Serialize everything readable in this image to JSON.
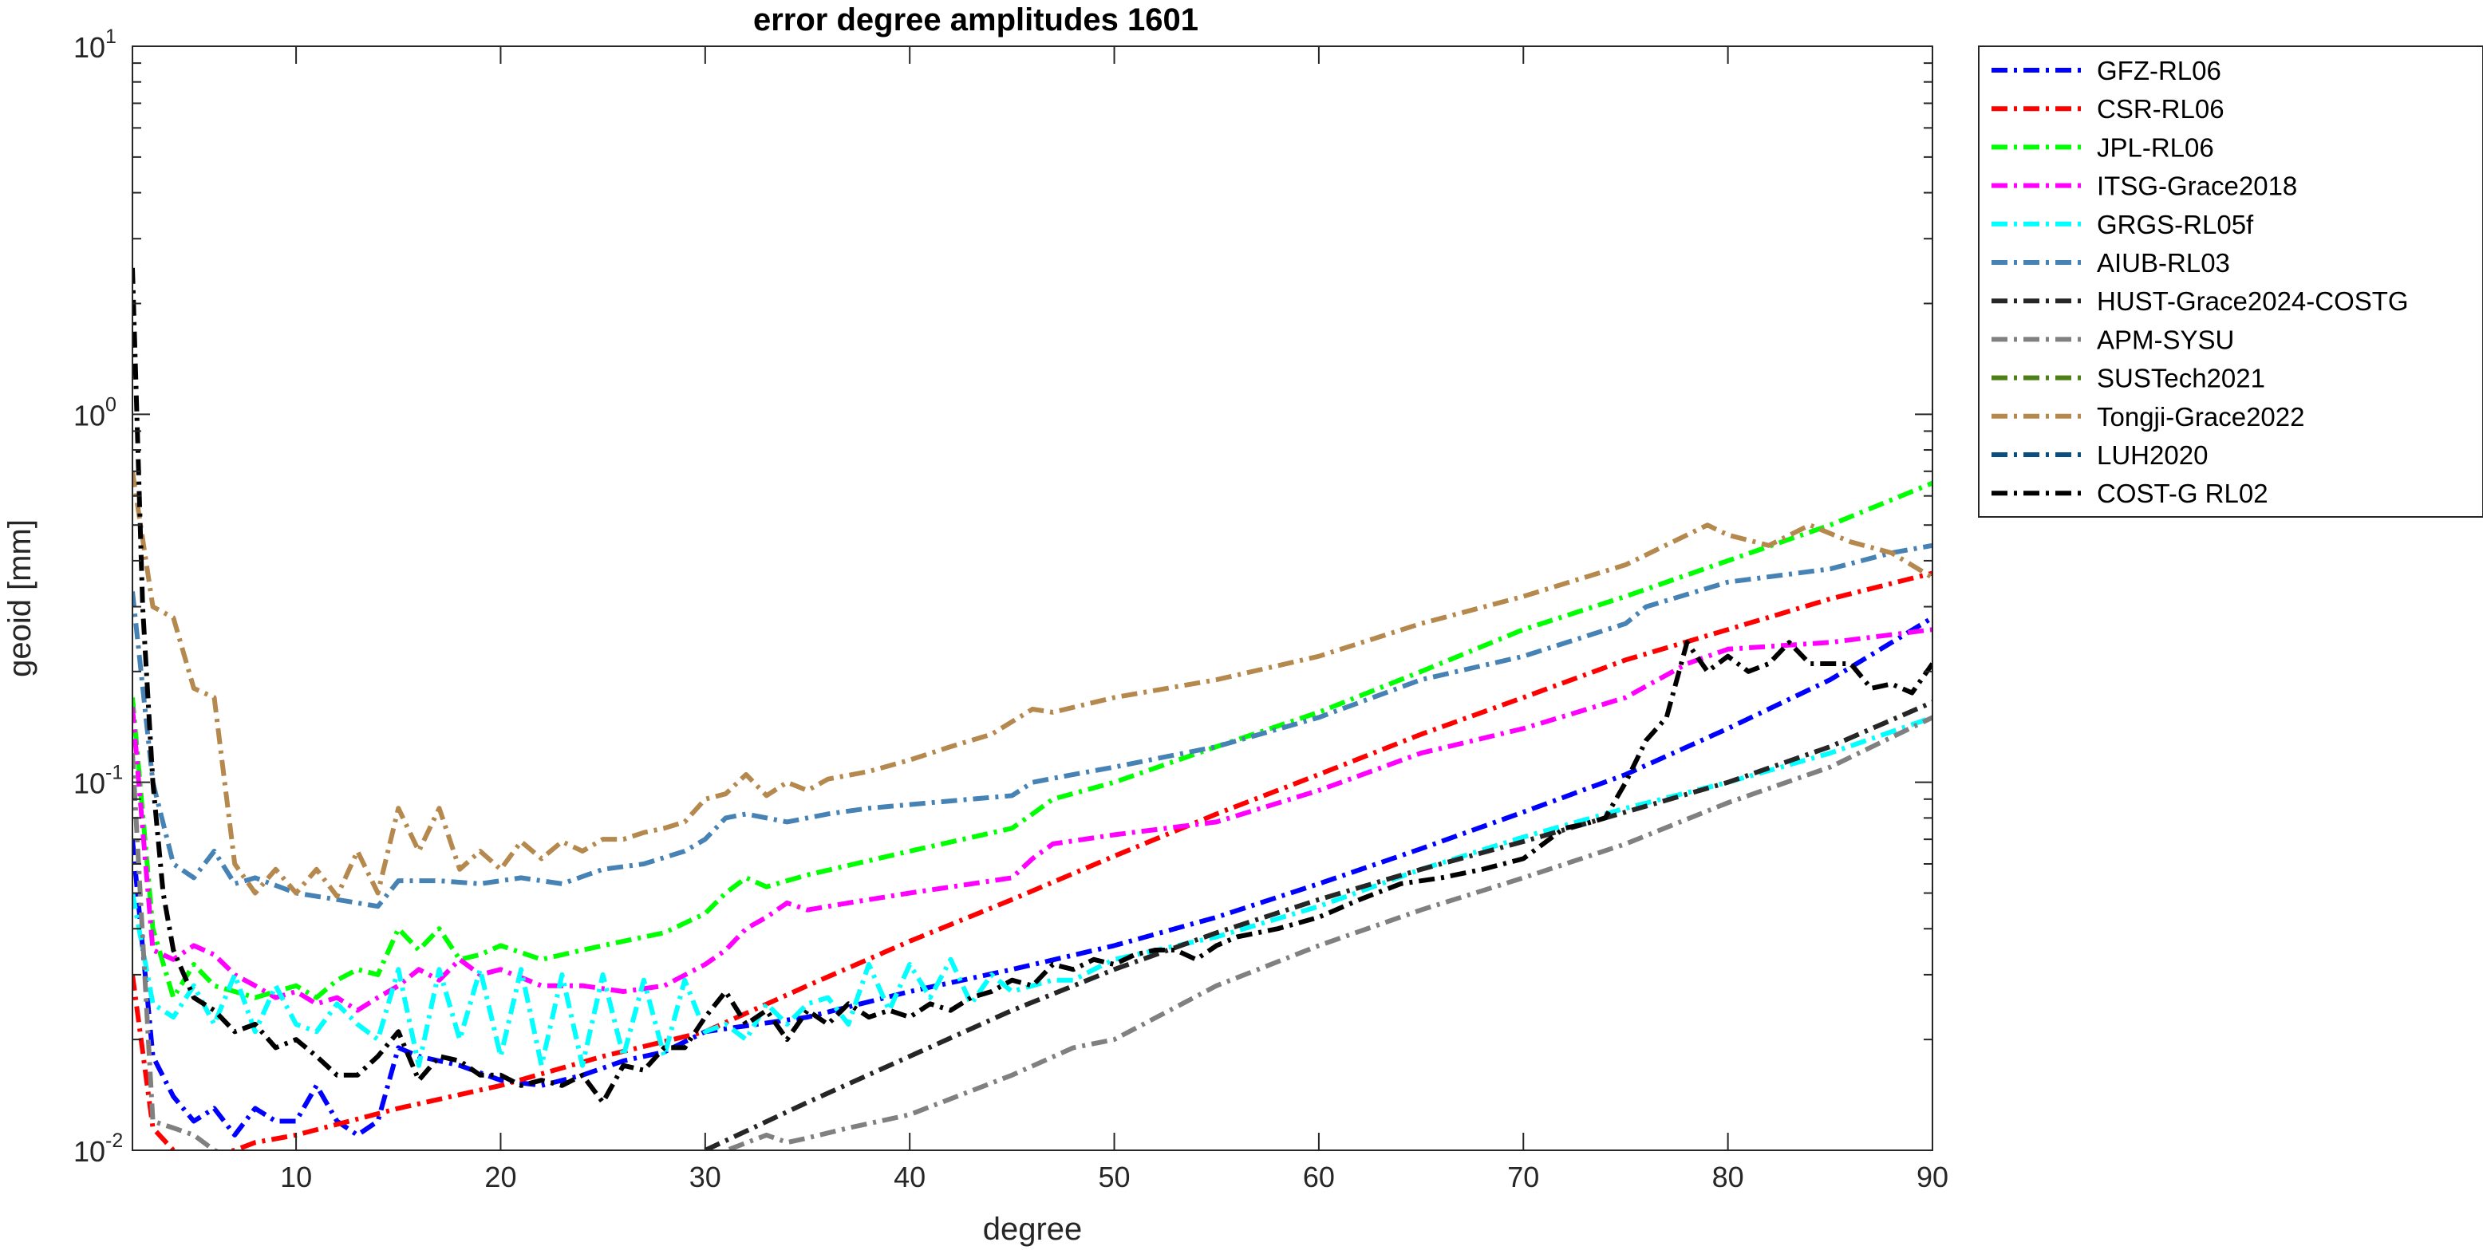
{
  "chart_data": {
    "type": "line",
    "title": "error degree amplitudes 1601",
    "xlabel": "degree",
    "ylabel": "geoid [mm]",
    "xlim": [
      2,
      90
    ],
    "ylim": [
      0.01,
      10
    ],
    "y_scale": "log",
    "grid": false,
    "legend_position": "outside-right",
    "x_ticks": [
      10,
      20,
      30,
      40,
      50,
      60,
      70,
      80,
      90
    ],
    "y_ticks": [
      {
        "value": 0.01,
        "base": "10",
        "exp": "-2"
      },
      {
        "value": 0.1,
        "base": "10",
        "exp": "-1"
      },
      {
        "value": 1,
        "base": "10",
        "exp": "0"
      },
      {
        "value": 10,
        "base": "10",
        "exp": "1"
      }
    ],
    "series": [
      {
        "name": "GFZ-RL06",
        "color": "#0000ff",
        "x": [
          2,
          3,
          4,
          5,
          6,
          7,
          8,
          9,
          10,
          11,
          12,
          13,
          14,
          15,
          16,
          18,
          20,
          22,
          24,
          26,
          28,
          30,
          35,
          40,
          45,
          50,
          55,
          60,
          65,
          70,
          75,
          80,
          85,
          90
        ],
        "y": [
          0.07,
          0.018,
          0.014,
          0.012,
          0.013,
          0.011,
          0.013,
          0.012,
          0.012,
          0.015,
          0.012,
          0.011,
          0.012,
          0.019,
          0.018,
          0.017,
          0.0155,
          0.015,
          0.016,
          0.0175,
          0.0185,
          0.021,
          0.023,
          0.027,
          0.031,
          0.036,
          0.043,
          0.053,
          0.066,
          0.083,
          0.105,
          0.14,
          0.19,
          0.28
        ]
      },
      {
        "name": "CSR-RL06",
        "color": "#ff0000",
        "x": [
          2,
          3,
          4,
          5,
          6,
          7,
          8,
          10,
          15,
          20,
          25,
          30,
          35,
          40,
          45,
          50,
          55,
          60,
          65,
          70,
          75,
          80,
          85,
          90
        ],
        "y": [
          0.03,
          0.0115,
          0.01,
          0.0095,
          0.0098,
          0.01,
          0.0105,
          0.011,
          0.013,
          0.015,
          0.018,
          0.021,
          0.028,
          0.037,
          0.048,
          0.063,
          0.082,
          0.105,
          0.135,
          0.17,
          0.215,
          0.26,
          0.315,
          0.37
        ]
      },
      {
        "name": "JPL-RL06",
        "color": "#00ff00",
        "x": [
          2,
          3,
          4,
          5,
          6,
          7,
          8,
          9,
          10,
          11,
          12,
          13,
          14,
          15,
          16,
          17,
          18,
          19,
          20,
          22,
          24,
          26,
          28,
          30,
          31,
          32,
          33,
          34,
          35,
          40,
          45,
          46,
          47,
          50,
          55,
          60,
          65,
          70,
          75,
          80,
          85,
          90
        ],
        "y": [
          0.17,
          0.04,
          0.026,
          0.032,
          0.028,
          0.027,
          0.026,
          0.027,
          0.028,
          0.026,
          0.029,
          0.031,
          0.03,
          0.04,
          0.035,
          0.04,
          0.033,
          0.034,
          0.036,
          0.033,
          0.035,
          0.037,
          0.039,
          0.044,
          0.05,
          0.055,
          0.052,
          0.054,
          0.056,
          0.065,
          0.075,
          0.082,
          0.09,
          0.1,
          0.125,
          0.155,
          0.2,
          0.26,
          0.32,
          0.4,
          0.5,
          0.65
        ]
      },
      {
        "name": "ITSG-Grace2018",
        "color": "#ff00ff",
        "x": [
          2,
          3,
          4,
          5,
          6,
          7,
          8,
          9,
          10,
          11,
          12,
          13,
          14,
          15,
          16,
          17,
          18,
          19,
          20,
          22,
          24,
          26,
          28,
          30,
          31,
          32,
          33,
          34,
          35,
          37,
          40,
          45,
          46,
          47,
          50,
          55,
          60,
          65,
          70,
          75,
          78,
          80,
          85,
          90
        ],
        "y": [
          0.16,
          0.035,
          0.033,
          0.036,
          0.034,
          0.03,
          0.028,
          0.026,
          0.027,
          0.025,
          0.026,
          0.024,
          0.026,
          0.028,
          0.031,
          0.029,
          0.033,
          0.03,
          0.031,
          0.028,
          0.028,
          0.027,
          0.028,
          0.032,
          0.035,
          0.04,
          0.043,
          0.047,
          0.045,
          0.047,
          0.05,
          0.055,
          0.062,
          0.068,
          0.072,
          0.078,
          0.095,
          0.12,
          0.14,
          0.17,
          0.21,
          0.23,
          0.24,
          0.26
        ]
      },
      {
        "name": "GRGS-RL05f",
        "color": "#00ffff",
        "x": [
          2,
          3,
          4,
          5,
          6,
          7,
          8,
          9,
          10,
          11,
          12,
          13,
          14,
          15,
          16,
          17,
          18,
          19,
          20,
          21,
          22,
          23,
          24,
          25,
          26,
          27,
          28,
          29,
          30,
          31,
          32,
          33,
          34,
          35,
          36,
          37,
          38,
          39,
          40,
          41,
          42,
          43,
          44,
          45,
          46,
          47,
          48,
          49,
          50,
          55,
          60,
          65,
          70,
          75,
          80,
          85,
          90
        ],
        "y": [
          0.05,
          0.025,
          0.023,
          0.028,
          0.022,
          0.03,
          0.021,
          0.028,
          0.022,
          0.021,
          0.025,
          0.022,
          0.02,
          0.031,
          0.017,
          0.031,
          0.02,
          0.031,
          0.018,
          0.031,
          0.017,
          0.03,
          0.017,
          0.03,
          0.018,
          0.029,
          0.018,
          0.029,
          0.021,
          0.022,
          0.02,
          0.025,
          0.022,
          0.025,
          0.026,
          0.022,
          0.032,
          0.024,
          0.032,
          0.026,
          0.033,
          0.025,
          0.03,
          0.027,
          0.028,
          0.029,
          0.029,
          0.031,
          0.033,
          0.038,
          0.046,
          0.058,
          0.071,
          0.085,
          0.1,
          0.12,
          0.15
        ]
      },
      {
        "name": "AIUB-RL03",
        "color": "#4682b4",
        "x": [
          2,
          3,
          4,
          5,
          6,
          7,
          8,
          10,
          12,
          14,
          15,
          17,
          19,
          21,
          23,
          25,
          27,
          29,
          30,
          31,
          32,
          34,
          36,
          38,
          40,
          43,
          45,
          46,
          48,
          50,
          55,
          60,
          65,
          70,
          75,
          76,
          80,
          85,
          88,
          90
        ],
        "y": [
          0.33,
          0.1,
          0.06,
          0.055,
          0.065,
          0.053,
          0.055,
          0.05,
          0.048,
          0.046,
          0.054,
          0.054,
          0.053,
          0.055,
          0.053,
          0.058,
          0.06,
          0.065,
          0.07,
          0.08,
          0.082,
          0.078,
          0.082,
          0.085,
          0.087,
          0.09,
          0.092,
          0.1,
          0.105,
          0.11,
          0.125,
          0.15,
          0.19,
          0.22,
          0.27,
          0.3,
          0.35,
          0.38,
          0.42,
          0.44
        ]
      },
      {
        "name": "HUST-Grace2024-COSTG",
        "color": "#262626",
        "x": [
          30,
          35,
          40,
          45,
          50,
          55,
          60,
          65,
          70,
          75,
          80,
          85,
          90
        ],
        "y": [
          0.01,
          0.0135,
          0.018,
          0.024,
          0.031,
          0.039,
          0.048,
          0.058,
          0.069,
          0.083,
          0.1,
          0.125,
          0.165
        ]
      },
      {
        "name": "APM-SYSU",
        "color": "#808080",
        "x": [
          2,
          3,
          4,
          5,
          6,
          7,
          8,
          30,
          33,
          34,
          35,
          37,
          40,
          45,
          48,
          50,
          55,
          60,
          65,
          70,
          75,
          80,
          85,
          90
        ],
        "y": [
          0.12,
          0.012,
          0.0115,
          0.011,
          0.01,
          0.0095,
          0.009,
          0.0095,
          0.011,
          0.0105,
          0.0108,
          0.0115,
          0.0125,
          0.016,
          0.019,
          0.02,
          0.028,
          0.036,
          0.045,
          0.055,
          0.068,
          0.088,
          0.11,
          0.15
        ]
      },
      {
        "name": "SUSTech2021",
        "color": "#4d7f17",
        "x": [],
        "y": []
      },
      {
        "name": "Tongji-Grace2022",
        "color": "#b5894e",
        "x": [
          2,
          3,
          4,
          5,
          6,
          7,
          8,
          9,
          10,
          11,
          12,
          13,
          14,
          15,
          16,
          17,
          18,
          19,
          20,
          21,
          22,
          23,
          24,
          25,
          26,
          27,
          28,
          29,
          30,
          31,
          32,
          33,
          34,
          35,
          36,
          38,
          40,
          42,
          44,
          46,
          47,
          50,
          55,
          60,
          65,
          70,
          75,
          79,
          80,
          82,
          84,
          86,
          88,
          90
        ],
        "y": [
          0.7,
          0.3,
          0.28,
          0.18,
          0.17,
          0.06,
          0.05,
          0.058,
          0.05,
          0.058,
          0.049,
          0.065,
          0.05,
          0.085,
          0.065,
          0.085,
          0.058,
          0.065,
          0.058,
          0.069,
          0.062,
          0.069,
          0.065,
          0.07,
          0.07,
          0.073,
          0.075,
          0.078,
          0.09,
          0.093,
          0.105,
          0.092,
          0.1,
          0.095,
          0.102,
          0.107,
          0.115,
          0.125,
          0.135,
          0.158,
          0.155,
          0.17,
          0.19,
          0.22,
          0.27,
          0.32,
          0.39,
          0.5,
          0.47,
          0.44,
          0.5,
          0.45,
          0.42,
          0.36
        ]
      },
      {
        "name": "LUH2020",
        "color": "#0b4f7f",
        "x": [],
        "y": []
      },
      {
        "name": "COST-G RL02",
        "color": "#000000",
        "x": [
          2,
          2.5,
          3,
          3.5,
          4,
          5,
          6,
          7,
          8,
          9,
          10,
          11,
          12,
          13,
          14,
          15,
          16,
          17,
          18,
          19,
          20,
          21,
          22,
          23,
          24,
          25,
          26,
          27,
          28,
          29,
          30,
          31,
          32,
          33,
          34,
          35,
          36,
          37,
          38,
          39,
          40,
          41,
          42,
          43,
          44,
          45,
          46,
          47,
          48,
          49,
          50,
          51,
          52,
          53,
          54,
          55,
          56,
          58,
          60,
          62,
          64,
          66,
          68,
          70,
          72,
          73,
          74,
          75,
          76,
          77,
          78,
          79,
          80,
          81,
          82,
          83,
          84,
          85,
          86,
          87,
          88,
          89,
          90
        ],
        "y": [
          2.5,
          0.3,
          0.1,
          0.05,
          0.035,
          0.026,
          0.024,
          0.021,
          0.022,
          0.019,
          0.02,
          0.018,
          0.016,
          0.016,
          0.018,
          0.021,
          0.0155,
          0.018,
          0.0175,
          0.016,
          0.016,
          0.015,
          0.0155,
          0.015,
          0.016,
          0.0135,
          0.017,
          0.0165,
          0.019,
          0.019,
          0.023,
          0.027,
          0.022,
          0.024,
          0.02,
          0.024,
          0.022,
          0.025,
          0.023,
          0.024,
          0.023,
          0.025,
          0.024,
          0.026,
          0.027,
          0.029,
          0.028,
          0.032,
          0.031,
          0.033,
          0.032,
          0.034,
          0.035,
          0.035,
          0.033,
          0.036,
          0.038,
          0.04,
          0.043,
          0.048,
          0.053,
          0.055,
          0.058,
          0.062,
          0.075,
          0.077,
          0.08,
          0.1,
          0.13,
          0.15,
          0.24,
          0.2,
          0.22,
          0.2,
          0.21,
          0.24,
          0.21,
          0.21,
          0.21,
          0.18,
          0.185,
          0.175,
          0.21
        ]
      }
    ]
  }
}
